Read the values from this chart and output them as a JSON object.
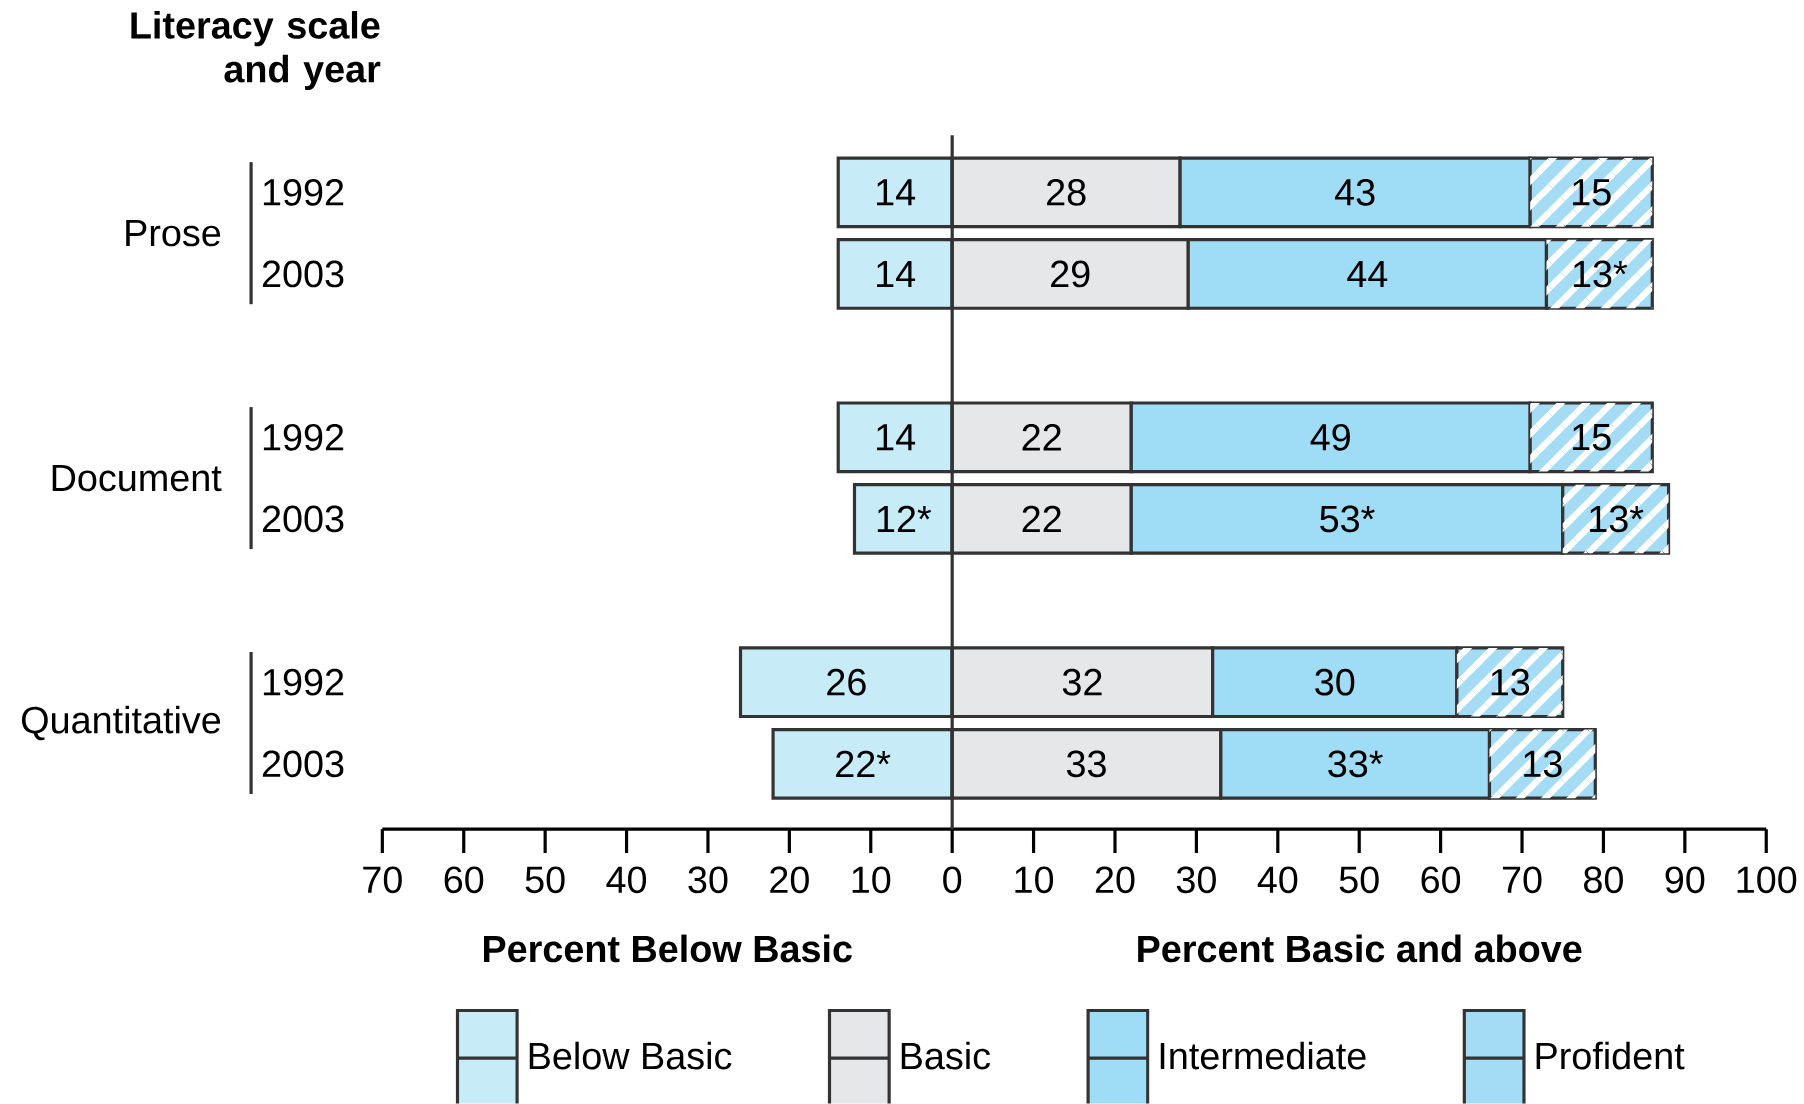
{
  "chart_data": {
    "type": "bar",
    "orientation": "horizontal",
    "ylabel": "Literacy scale and year",
    "categories": [
      "1992",
      "2003",
      "1992",
      "2003",
      "1992",
      "2003"
    ],
    "series": [
      {
        "name": "Below Basic",
        "color": "#c8ebf8",
        "base": [
          -14,
          -14,
          -14,
          -12,
          -26,
          -22
        ],
        "values": [
          14,
          14,
          14,
          12,
          26,
          22
        ],
        "value_labels": [
          "14",
          "14",
          "14",
          "12*",
          "26",
          "22*"
        ]
      },
      {
        "name": "Basic",
        "color": "#e6e7e8",
        "base": [
          0,
          0,
          0,
          0,
          0,
          0
        ],
        "values": [
          28,
          29,
          22,
          22,
          32,
          33
        ],
        "value_labels": [
          "28",
          "29",
          "22",
          "22",
          "32",
          "33"
        ]
      },
      {
        "name": "Intermediate",
        "color": "#9fdcf6",
        "base": [
          28,
          29,
          22,
          22,
          32,
          33
        ],
        "values": [
          43,
          44,
          49,
          53,
          30,
          33
        ],
        "value_labels": [
          "43",
          "44",
          "49",
          "53*",
          "30",
          "33*"
        ]
      },
      {
        "name": "Profident",
        "color": "#a5dcf5",
        "base": [
          71,
          73,
          71,
          75,
          62,
          66
        ],
        "values": [
          15,
          13,
          15,
          13,
          13,
          13
        ],
        "value_labels": [
          "15",
          "13*",
          "15",
          "13*",
          "13",
          "13"
        ]
      }
    ],
    "xlim": [
      -70,
      100
    ],
    "xticks": [
      {
        "value": -70,
        "label": "70"
      },
      {
        "value": -60,
        "label": "60"
      },
      {
        "value": -50,
        "label": "50"
      },
      {
        "value": -40,
        "label": "40"
      },
      {
        "value": -30,
        "label": "30"
      },
      {
        "value": -20,
        "label": "20"
      },
      {
        "value": -10,
        "label": "10"
      },
      0,
      10,
      20,
      30,
      40,
      50,
      60,
      70,
      80,
      90,
      100
    ],
    "ref_lines": [
      {
        "axis": "x",
        "value": 0
      }
    ],
    "annotations": [
      "Prose",
      "Document",
      "Quantitative",
      "Percent Below Basic",
      "Percent Basic and above"
    ],
    "legend": "bottom",
    "grid": false
  }
}
